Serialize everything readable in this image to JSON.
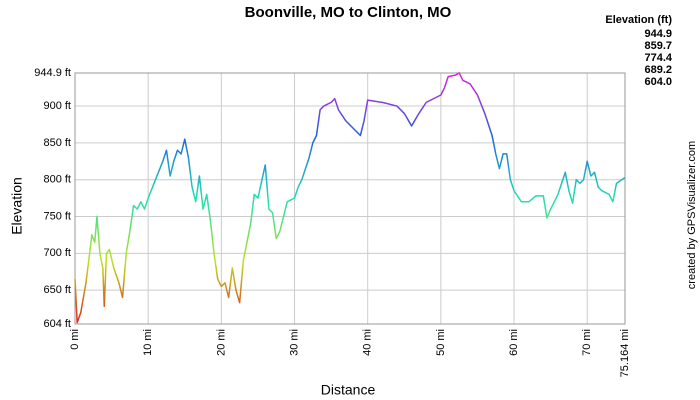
{
  "chart_data": {
    "type": "line",
    "title": "Boonville, MO to Clinton, MO",
    "x_label": "Distance",
    "y_label": "Elevation",
    "credit": "created by GPSVisualizer.com",
    "legend_title": "Elevation (ft)",
    "legend_entries": [
      {
        "value": 944.9,
        "color": "#e020e0"
      },
      {
        "value": 859.7,
        "color": "#2060e0"
      },
      {
        "value": 774.4,
        "color": "#20e0b0"
      },
      {
        "value": 689.2,
        "color": "#c0e020"
      },
      {
        "value": 604,
        "label": "604.0",
        "color": "#e02020"
      }
    ],
    "grid": true,
    "xlim": [
      0,
      75.164
    ],
    "ylim": [
      604,
      944.9
    ],
    "xticks": [
      {
        "value": 0,
        "label": "0 mi"
      },
      {
        "value": 10,
        "label": "10 mi"
      },
      {
        "value": 20,
        "label": "20 mi"
      },
      {
        "value": 30,
        "label": "30 mi"
      },
      {
        "value": 40,
        "label": "40 mi"
      },
      {
        "value": 50,
        "label": "50 mi"
      },
      {
        "value": 60,
        "label": "60 mi"
      },
      {
        "value": 70,
        "label": "70 mi"
      },
      {
        "value": 75.164,
        "label": "75.164 mi"
      }
    ],
    "yticks": [
      {
        "value": 604,
        "label": "604 ft"
      },
      {
        "value": 650,
        "label": "650 ft"
      },
      {
        "value": 700,
        "label": "700 ft"
      },
      {
        "value": 750,
        "label": "750 ft"
      },
      {
        "value": 800,
        "label": "800 ft"
      },
      {
        "value": 850,
        "label": "850 ft"
      },
      {
        "value": 900,
        "label": "900 ft"
      },
      {
        "value": 944.9,
        "label": "944.9 ft"
      }
    ],
    "x": [
      0,
      0.3,
      0.8,
      1.5,
      2,
      2.3,
      2.7,
      3,
      3.4,
      3.8,
      4,
      4.3,
      4.7,
      5.3,
      6,
      6.5,
      7,
      7.5,
      8,
      8.5,
      9,
      9.5,
      10,
      11,
      12,
      12.5,
      13,
      13.5,
      14,
      14.5,
      15,
      15.5,
      16,
      16.5,
      17,
      17.5,
      18,
      18.5,
      19,
      19.5,
      20,
      20.5,
      21,
      21.5,
      22,
      22.5,
      23,
      24,
      24.5,
      25,
      26,
      26.5,
      27,
      27.5,
      28,
      29,
      30,
      30.5,
      31,
      31.5,
      32,
      32.5,
      33,
      33.5,
      34,
      35,
      35.5,
      36,
      37,
      38,
      39,
      39.5,
      40,
      42,
      44,
      45,
      46,
      47,
      48,
      50,
      50.5,
      51,
      52,
      52.5,
      53,
      54,
      55,
      56,
      57,
      57.5,
      58,
      58.5,
      59,
      59.5,
      60,
      61,
      62,
      63,
      64,
      64.5,
      65,
      66,
      67,
      67.5,
      68,
      68.5,
      69,
      69.5,
      70,
      70.5,
      71,
      71.5,
      72,
      73,
      73.5,
      74,
      75.164
    ],
    "values": [
      665,
      606,
      620,
      660,
      700,
      725,
      715,
      750,
      700,
      680,
      628,
      700,
      705,
      680,
      660,
      640,
      700,
      730,
      765,
      760,
      770,
      760,
      775,
      800,
      825,
      840,
      805,
      825,
      840,
      835,
      855,
      830,
      790,
      770,
      805,
      760,
      780,
      745,
      700,
      665,
      655,
      660,
      640,
      680,
      650,
      633,
      690,
      740,
      780,
      775,
      820,
      760,
      755,
      720,
      730,
      770,
      775,
      790,
      800,
      815,
      830,
      850,
      860,
      895,
      900,
      905,
      910,
      895,
      880,
      870,
      860,
      880,
      908,
      905,
      900,
      890,
      873,
      890,
      905,
      915,
      925,
      940,
      942,
      945,
      935,
      930,
      915,
      890,
      860,
      835,
      815,
      835,
      835,
      800,
      785,
      770,
      770,
      778,
      778,
      748,
      760,
      780,
      810,
      785,
      768,
      800,
      795,
      800,
      825,
      805,
      810,
      790,
      785,
      780,
      770,
      795,
      803
    ]
  }
}
